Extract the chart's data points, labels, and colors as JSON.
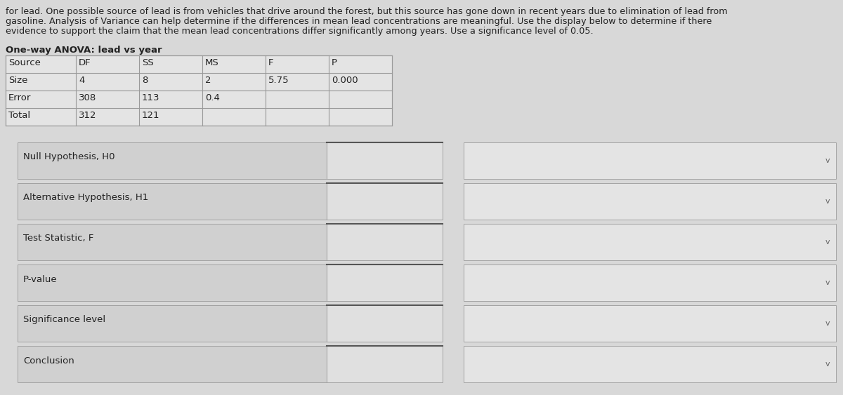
{
  "header_lines": [
    "for lead. One possible source of lead is from vehicles that drive around the forest, but this source has gone down in recent years due to elimination of lead from",
    "gasoline. Analysis of Variance can help determine if the differences in mean lead concentrations are meaningful. Use the display below to determine if there",
    "evidence to support the claim that the mean lead concentrations differ significantly among years. Use a significance level of 0.05."
  ],
  "anova_title": "One-way ANOVA: lead vs year",
  "table_headers": [
    "Source",
    "DF",
    "SS",
    "MS",
    "F",
    "P"
  ],
  "table_rows": [
    [
      "Size",
      "4",
      "8",
      "2",
      "5.75",
      "0.000"
    ],
    [
      "Error",
      "308",
      "113",
      "0.4",
      "",
      ""
    ],
    [
      "Total",
      "312",
      "121",
      "",
      "",
      ""
    ]
  ],
  "form_labels": [
    "Null Hypothesis, H0",
    "Alternative Hypothesis, H1",
    "Test Statistic, F",
    "P-value",
    "Significance level",
    "Conclusion"
  ],
  "bg_color": "#d8d8d8",
  "table_bg_light": "#e4e4e4",
  "form_label_bg": "#d0d0d0",
  "form_input_bg": "#e0e0e0",
  "form_right_bg": "#e4e4e4",
  "text_color": "#222222",
  "border_color": "#999999",
  "chevron_color": "#666666",
  "header_fontsize": 9.2,
  "title_fontsize": 9.5,
  "table_fontsize": 9.5,
  "form_fontsize": 9.5
}
